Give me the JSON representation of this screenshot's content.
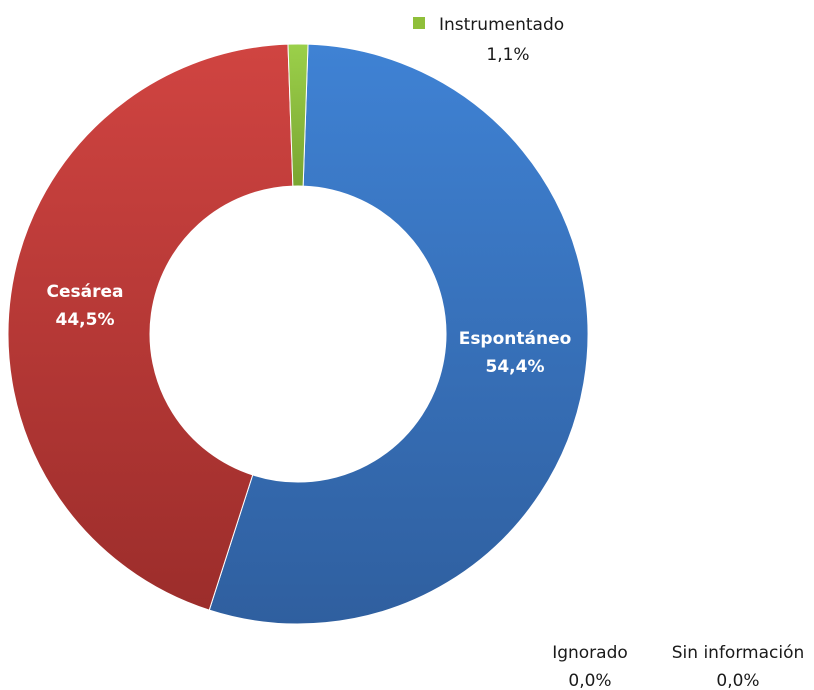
{
  "chart_data": {
    "type": "pie",
    "style": "donut",
    "slices": [
      {
        "label": "Espontáneo",
        "value": 54.4,
        "display": "54,4%",
        "color": "#3a76c4"
      },
      {
        "label": "Cesárea",
        "value": 44.5,
        "display": "44,5%",
        "color": "#c23b39"
      },
      {
        "label": "Instrumentado",
        "value": 1.1,
        "display": "1,1%",
        "color": "#8fbf3a"
      },
      {
        "label": "Ignorado",
        "value": 0.0,
        "display": "0,0%",
        "color": "#7f7f7f"
      },
      {
        "label": "Sin información",
        "value": 0.0,
        "display": "0,0%",
        "color": "#bfbfbf"
      }
    ]
  }
}
